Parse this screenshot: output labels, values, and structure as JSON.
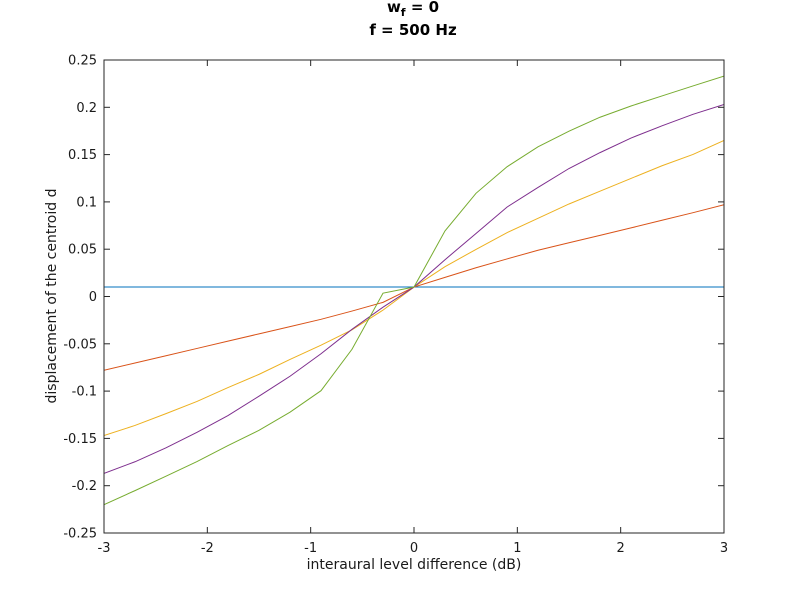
{
  "chart_data": {
    "type": "line",
    "title": {
      "line1_main": "w",
      "line1_sub": "f",
      "line1_rest": " = 0",
      "line2": "f = 500 Hz"
    },
    "xlabel": "interaural level difference (dB)",
    "ylabel": "displacement of the centroid d",
    "xlim": [
      -3,
      3
    ],
    "ylim": [
      -0.25,
      0.25
    ],
    "xticks": [
      -3,
      -2,
      -1,
      0,
      1,
      2,
      3
    ],
    "xtick_labels": [
      "-3",
      "-2",
      "-1",
      "0",
      "1",
      "2",
      "3"
    ],
    "yticks": [
      -0.25,
      -0.2,
      -0.15,
      -0.1,
      -0.05,
      0,
      0.05,
      0.1,
      0.15,
      0.2,
      0.25
    ],
    "ytick_labels": [
      "-0.25",
      "-0.2",
      "-0.15",
      "-0.1",
      "-0.05",
      "0",
      "0.05",
      "0.1",
      "0.15",
      "0.2",
      "0.25"
    ],
    "grid": false,
    "x": [
      -3,
      -2.7,
      -2.4,
      -2.1,
      -1.8,
      -1.5,
      -1.2,
      -0.9,
      -0.6,
      -0.3,
      0,
      0.3,
      0.6,
      0.9,
      1.2,
      1.5,
      1.8,
      2.1,
      2.4,
      2.7,
      3
    ],
    "series": [
      {
        "color": "#0072bd",
        "values": [
          0.01,
          0.01,
          0.01,
          0.01,
          0.01,
          0.01,
          0.01,
          0.01,
          0.01,
          0.01,
          0.01,
          0.01,
          0.01,
          0.01,
          0.01,
          0.01,
          0.01,
          0.01,
          0.01,
          0.01,
          0.01
        ]
      },
      {
        "color": "#d95319",
        "values": [
          -0.078,
          -0.0703,
          -0.0626,
          -0.0549,
          -0.0472,
          -0.0395,
          -0.0318,
          -0.0241,
          -0.0154,
          -0.0062,
          0.01,
          0.0202,
          0.0304,
          0.0397,
          0.0489,
          0.0568,
          0.0646,
          0.0725,
          0.0806,
          0.0886,
          0.097
        ]
      },
      {
        "color": "#edb120",
        "values": [
          -0.147,
          -0.1363,
          -0.1238,
          -0.1109,
          -0.0963,
          -0.0823,
          -0.0665,
          -0.0515,
          -0.0352,
          -0.0144,
          0.01,
          0.0315,
          0.0498,
          0.0675,
          0.0827,
          0.0978,
          0.1113,
          0.1248,
          0.1382,
          0.1502,
          0.165
        ]
      },
      {
        "color": "#7e2f8e",
        "values": [
          -0.187,
          -0.1747,
          -0.16,
          -0.1436,
          -0.1259,
          -0.1054,
          -0.0843,
          -0.0605,
          -0.0347,
          -0.0113,
          0.01,
          0.0389,
          0.0666,
          0.0945,
          0.1153,
          0.1353,
          0.1521,
          0.1675,
          0.1804,
          0.1926,
          0.203
        ]
      },
      {
        "color": "#77ac30",
        "values": [
          -0.22,
          -0.2052,
          -0.1899,
          -0.1745,
          -0.1576,
          -0.1415,
          -0.1223,
          -0.0996,
          -0.0558,
          0.0035,
          0.01,
          0.0693,
          0.1091,
          0.1371,
          0.1582,
          0.1748,
          0.1895,
          0.2014,
          0.212,
          0.2226,
          0.233
        ]
      }
    ]
  }
}
